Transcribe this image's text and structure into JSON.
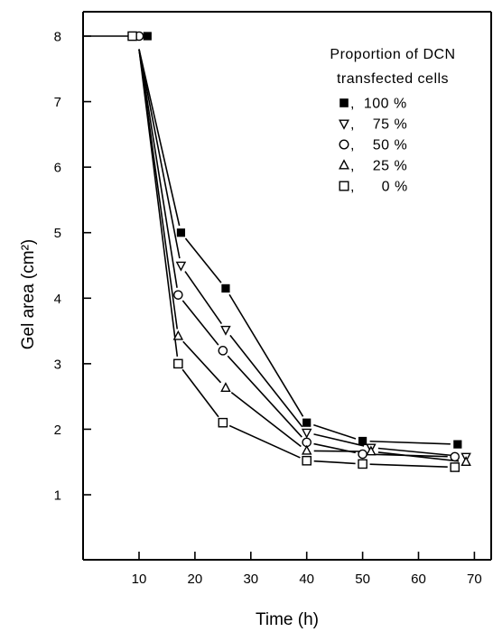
{
  "chart_data": {
    "type": "line",
    "xlabel": "Time (h)",
    "ylabel": "Gel area (cm²)",
    "xlim": [
      0,
      73
    ],
    "ylim": [
      0,
      8.4
    ],
    "x_ticks": [
      "10",
      "20",
      "30",
      "40",
      "50",
      "60",
      "70"
    ],
    "y_ticks": [
      "1",
      "2",
      "3",
      "4",
      "5",
      "6",
      "7",
      "8"
    ],
    "legend_title": [
      "Proportion of DCN",
      "transfected cells"
    ],
    "legend_position": "top-right",
    "grid": false,
    "series": [
      {
        "name": "100 %",
        "legend_text": ",  100 %",
        "marker": "filled-square",
        "points": [
          [
            11.5,
            8.0
          ],
          [
            17.5,
            5.0
          ],
          [
            25.5,
            4.15
          ],
          [
            40.0,
            2.1
          ],
          [
            50.0,
            1.82
          ],
          [
            67.0,
            1.77
          ]
        ]
      },
      {
        "name": "75 %",
        "legend_text": ",    75 %",
        "marker": "triangle-down",
        "points": [
          [
            17.5,
            4.5
          ],
          [
            25.5,
            3.52
          ],
          [
            40.0,
            1.95
          ],
          [
            51.5,
            1.72
          ],
          [
            68.5,
            1.58
          ]
        ]
      },
      {
        "name": "50 %",
        "legend_text": ",    50 %",
        "marker": "circle",
        "points": [
          [
            10.0,
            8.0
          ],
          [
            17.0,
            4.05
          ],
          [
            25.0,
            3.2
          ],
          [
            40.0,
            1.8
          ],
          [
            50.0,
            1.62
          ],
          [
            66.5,
            1.58
          ]
        ]
      },
      {
        "name": "25 %",
        "legend_text": ",    25 %",
        "marker": "triangle-up",
        "points": [
          [
            17.0,
            3.42
          ],
          [
            25.5,
            2.63
          ],
          [
            40.0,
            1.67
          ],
          [
            51.5,
            1.66
          ],
          [
            68.5,
            1.5
          ]
        ]
      },
      {
        "name": "0 %",
        "legend_text": ",      0 %",
        "marker": "open-square",
        "points": [
          [
            8.8,
            8.0
          ],
          [
            17.0,
            3.0
          ],
          [
            25.0,
            2.1
          ],
          [
            40.0,
            1.52
          ],
          [
            50.0,
            1.47
          ],
          [
            66.5,
            1.42
          ]
        ]
      }
    ],
    "convergence_point": [
      10.0,
      7.8
    ],
    "left_reference_line": {
      "y": 8.0,
      "from_x": 0,
      "to_x": 8.3
    }
  }
}
